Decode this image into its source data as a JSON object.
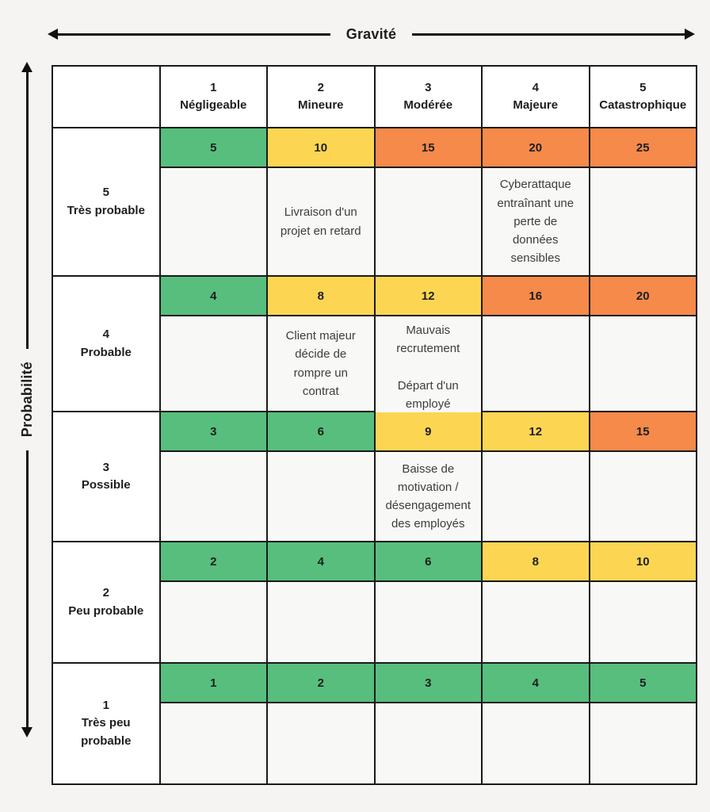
{
  "axes": {
    "x_label": "Gravité",
    "y_label": "Probabilité"
  },
  "colors": {
    "green": "#57be7d",
    "yellow": "#fcd653",
    "orange": "#f58a4b",
    "grid_line": "#1a1a1a",
    "cell_body": "#f8f8f7",
    "page_background": "#f5f4f2"
  },
  "matrix": {
    "corner": "",
    "col_headers": [
      "1\nNégligeable",
      "2\nMineure",
      "3\nModérée",
      "4\nMajeure",
      "5\nCatastrophique"
    ],
    "rows": [
      {
        "header": "5\nTrès probable",
        "cells": [
          {
            "score": "5",
            "level": "green",
            "example": ""
          },
          {
            "score": "10",
            "level": "yellow",
            "example": "Livraison d'un\nprojet en retard"
          },
          {
            "score": "15",
            "level": "orange",
            "example": ""
          },
          {
            "score": "20",
            "level": "orange",
            "example": "Cyberattaque\nentraînant une\nperte de\ndonnées\nsensibles"
          },
          {
            "score": "25",
            "level": "orange",
            "example": ""
          }
        ]
      },
      {
        "header": "4\nProbable",
        "cells": [
          {
            "score": "4",
            "level": "green",
            "example": ""
          },
          {
            "score": "8",
            "level": "yellow",
            "example": "Client majeur\ndécide de\nrompre un\ncontrat"
          },
          {
            "score": "12",
            "level": "yellow",
            "example": "Mauvais\nrecrutement\n\nDépart d'un\nemployé"
          },
          {
            "score": "16",
            "level": "orange",
            "example": ""
          },
          {
            "score": "20",
            "level": "orange",
            "example": ""
          }
        ]
      },
      {
        "header": "3\nPossible",
        "cells": [
          {
            "score": "3",
            "level": "green",
            "example": ""
          },
          {
            "score": "6",
            "level": "green",
            "example": ""
          },
          {
            "score": "9",
            "level": "yellow",
            "example": "Baisse de\nmotivation /\ndésengagement\ndes employés"
          },
          {
            "score": "12",
            "level": "yellow",
            "example": ""
          },
          {
            "score": "15",
            "level": "orange",
            "example": ""
          }
        ]
      },
      {
        "header": "2\nPeu probable",
        "cells": [
          {
            "score": "2",
            "level": "green",
            "example": ""
          },
          {
            "score": "4",
            "level": "green",
            "example": ""
          },
          {
            "score": "6",
            "level": "green",
            "example": ""
          },
          {
            "score": "8",
            "level": "yellow",
            "example": ""
          },
          {
            "score": "10",
            "level": "yellow",
            "example": ""
          }
        ]
      },
      {
        "header": "1\nTrès peu\nprobable",
        "cells": [
          {
            "score": "1",
            "level": "green",
            "example": ""
          },
          {
            "score": "2",
            "level": "green",
            "example": ""
          },
          {
            "score": "3",
            "level": "green",
            "example": ""
          },
          {
            "score": "4",
            "level": "green",
            "example": ""
          },
          {
            "score": "5",
            "level": "green",
            "example": ""
          }
        ]
      }
    ]
  },
  "chart_data": {
    "type": "heatmap",
    "title": "",
    "xlabel": "Gravité",
    "ylabel": "Probabilité",
    "x_categories": [
      "1 Négligeable",
      "2 Mineure",
      "3 Modérée",
      "4 Majeure",
      "5 Catastrophique"
    ],
    "y_categories": [
      "5 Très probable",
      "4 Probable",
      "3 Possible",
      "2 Peu probable",
      "1 Très peu probable"
    ],
    "values": [
      [
        5,
        10,
        15,
        20,
        25
      ],
      [
        4,
        8,
        12,
        16,
        20
      ],
      [
        3,
        6,
        9,
        12,
        15
      ],
      [
        2,
        4,
        6,
        8,
        10
      ],
      [
        1,
        2,
        3,
        4,
        5
      ]
    ],
    "cell_colors": [
      [
        "green",
        "yellow",
        "orange",
        "orange",
        "orange"
      ],
      [
        "green",
        "yellow",
        "yellow",
        "orange",
        "orange"
      ],
      [
        "green",
        "green",
        "yellow",
        "yellow",
        "orange"
      ],
      [
        "green",
        "green",
        "green",
        "yellow",
        "yellow"
      ],
      [
        "green",
        "green",
        "green",
        "green",
        "green"
      ]
    ],
    "annotations": [
      {
        "row": "5 Très probable",
        "col": "2 Mineure",
        "text": "Livraison d'un projet en retard"
      },
      {
        "row": "5 Très probable",
        "col": "4 Majeure",
        "text": "Cyberattaque entraînant une perte de données sensibles"
      },
      {
        "row": "4 Probable",
        "col": "2 Mineure",
        "text": "Client majeur décide de rompre un contrat"
      },
      {
        "row": "4 Probable",
        "col": "3 Modérée",
        "text": "Mauvais recrutement / Départ d'un employé"
      },
      {
        "row": "3 Possible",
        "col": "3 Modérée",
        "text": "Baisse de motivation / désengagement des employés"
      }
    ],
    "legend_position": "none",
    "grid": true
  }
}
